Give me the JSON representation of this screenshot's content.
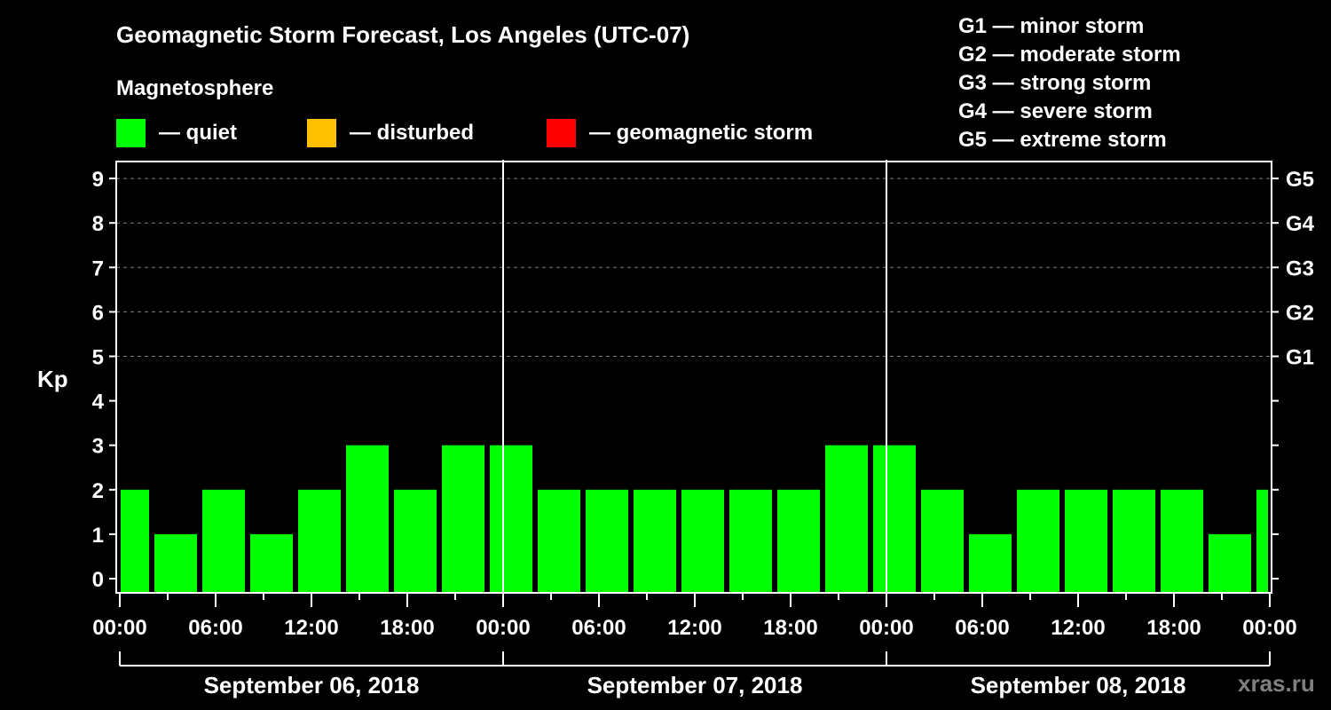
{
  "header": {
    "title": "Geomagnetic Storm Forecast, Los Angeles (UTC-07)",
    "subtitle": "Magnetosphere"
  },
  "legend": [
    {
      "label": "— quiet",
      "color": "#00ff00"
    },
    {
      "label": "— disturbed",
      "color": "#ffc000"
    },
    {
      "label": "— geomagnetic storm",
      "color": "#ff0000"
    }
  ],
  "g_scale": [
    "G1 — minor storm",
    "G2 — moderate storm",
    "G3 — strong storm",
    "G4 — severe storm",
    "G5 — extreme storm"
  ],
  "credit": "xras.ru",
  "chart_data": {
    "type": "bar",
    "title": "Geomagnetic Storm Forecast, Los Angeles (UTC-07)",
    "ylabel": "Kp",
    "xlabel": "",
    "ylim": [
      0,
      9
    ],
    "yticks": [
      0,
      1,
      2,
      3,
      4,
      5,
      6,
      7,
      8,
      9
    ],
    "right_axis_labels": [
      {
        "kp": 5,
        "label": "G1"
      },
      {
        "kp": 6,
        "label": "G2"
      },
      {
        "kp": 7,
        "label": "G3"
      },
      {
        "kp": 8,
        "label": "G4"
      },
      {
        "kp": 9,
        "label": "G5"
      }
    ],
    "grid": "dashed horizontal at Kp 5-9",
    "x_tick_labels": [
      "00:00",
      "06:00",
      "12:00",
      "18:00",
      "00:00",
      "06:00",
      "12:00",
      "18:00",
      "00:00",
      "06:00",
      "12:00",
      "18:00",
      "00:00"
    ],
    "dates": [
      "September 06, 2018",
      "September 07, 2018",
      "September 08, 2018"
    ],
    "interval_hours": 3,
    "categories": [
      "09-06 00:00",
      "09-06 03:00",
      "09-06 06:00",
      "09-06 09:00",
      "09-06 12:00",
      "09-06 15:00",
      "09-06 18:00",
      "09-06 21:00",
      "09-07 00:00",
      "09-07 03:00",
      "09-07 06:00",
      "09-07 09:00",
      "09-07 12:00",
      "09-07 15:00",
      "09-07 18:00",
      "09-07 21:00",
      "09-08 00:00",
      "09-08 03:00",
      "09-08 06:00",
      "09-08 09:00",
      "09-08 12:00",
      "09-08 15:00",
      "09-08 18:00",
      "09-08 21:00",
      "09-09 00:00"
    ],
    "values": [
      2,
      1,
      2,
      1,
      2,
      3,
      2,
      3,
      3,
      2,
      2,
      2,
      2,
      2,
      2,
      3,
      3,
      2,
      1,
      2,
      2,
      2,
      2,
      1,
      2
    ],
    "bar_color": "#00ff00",
    "status": "quiet"
  }
}
